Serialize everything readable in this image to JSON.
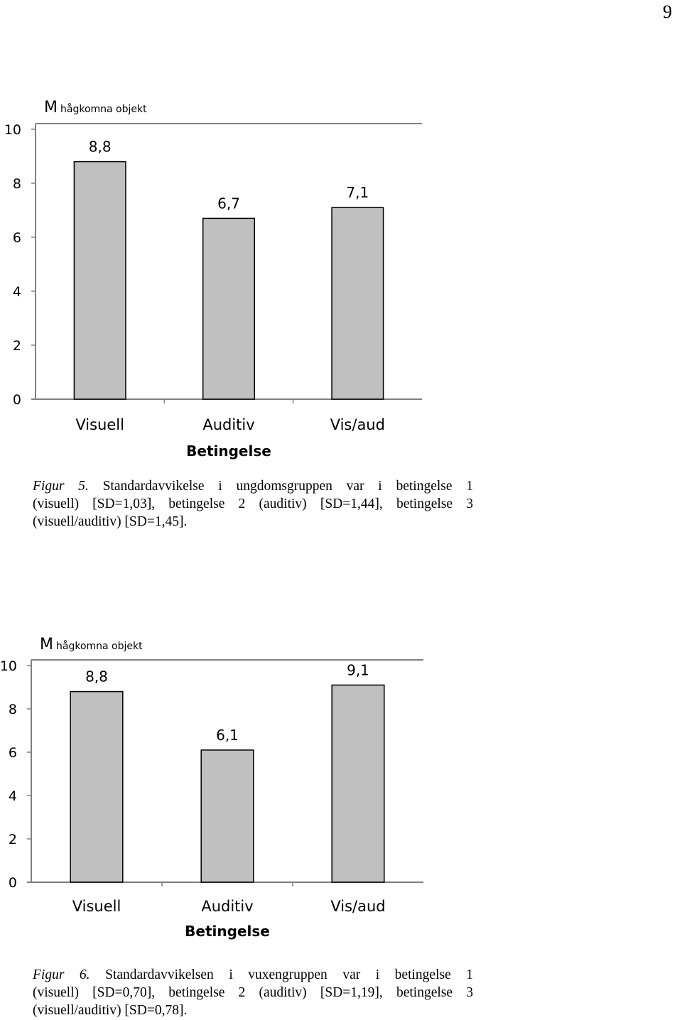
{
  "page_number": "9",
  "chart_data": [
    {
      "type": "bar",
      "title": "",
      "y_unit_label": "M",
      "ylabel": "hågkomna objekt",
      "xlabel": "Betingelse",
      "categories": [
        "Visuell",
        "Auditiv",
        "Vis/aud"
      ],
      "values": [
        8.8,
        6.7,
        7.1
      ],
      "value_labels": [
        "8,8",
        "6,7",
        "7,1"
      ],
      "ylim": [
        0,
        10
      ],
      "yticks": [
        "0",
        "2",
        "4",
        "6",
        "8",
        "10"
      ],
      "bar_color": "#c0c0c0",
      "grid": false
    },
    {
      "type": "bar",
      "title": "",
      "y_unit_label": "M",
      "ylabel": "hågkomna objekt",
      "xlabel": "Betingelse",
      "categories": [
        "Visuell",
        "Auditiv",
        "Vis/aud"
      ],
      "values": [
        8.8,
        6.1,
        9.1
      ],
      "value_labels": [
        "8,8",
        "6,1",
        "9,1"
      ],
      "ylim": [
        0,
        10
      ],
      "yticks": [
        "0",
        "2",
        "4",
        "6",
        "8",
        "10"
      ],
      "bar_color": "#c0c0c0",
      "grid": false
    }
  ],
  "captions": [
    {
      "label": "Figur 5.",
      "lines": [
        "Standardavvikelse i ungdomsgruppen var i betingelse 1",
        "(visuell) [SD=1,03], betingelse 2 (auditiv) [SD=1,44], betingelse 3",
        "(visuell/auditiv) [SD=1,45]."
      ]
    },
    {
      "label": "Figur 6.",
      "lines": [
        "Standardavvikelsen i vuxengruppen var i betingelse 1",
        "(visuell) [SD=0,70], betingelse 2 (auditiv) [SD=1,19], betingelse 3",
        "(visuell/auditiv) [SD=0,78]."
      ]
    }
  ]
}
